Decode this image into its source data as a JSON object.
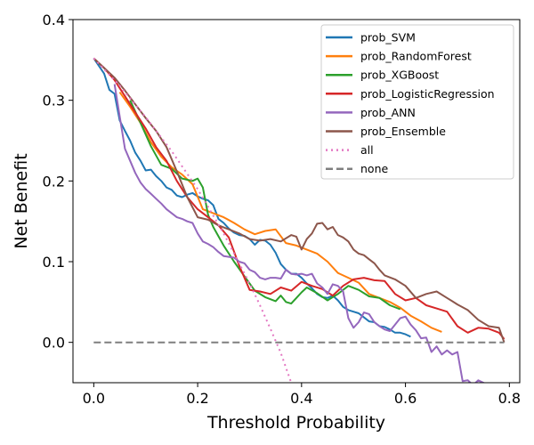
{
  "chart_data": {
    "type": "line",
    "title": "",
    "xlabel": "Threshold Probability",
    "ylabel": "Net Benefit",
    "xlim": [
      -0.04,
      0.82
    ],
    "ylim": [
      -0.05,
      0.4
    ],
    "xticks": [
      0.0,
      0.2,
      0.4,
      0.6,
      0.8
    ],
    "xtick_labels": [
      "0.0",
      "0.2",
      "0.4",
      "0.6",
      "0.8"
    ],
    "yticks": [
      0.0,
      0.1,
      0.2,
      0.3,
      0.4
    ],
    "ytick_labels": [
      "0.0",
      "0.1",
      "0.2",
      "0.3",
      "0.4"
    ],
    "grid": false,
    "legend_position": "top-right",
    "series": [
      {
        "name": "prob_SVM",
        "color": "#1f77b4",
        "style": "solid",
        "x": [
          0.0,
          0.02,
          0.03,
          0.04,
          0.05,
          0.06,
          0.07,
          0.08,
          0.09,
          0.1,
          0.11,
          0.12,
          0.13,
          0.14,
          0.15,
          0.16,
          0.17,
          0.18,
          0.19,
          0.2,
          0.21,
          0.22,
          0.23,
          0.24,
          0.25,
          0.26,
          0.27,
          0.28,
          0.29,
          0.3,
          0.31,
          0.32,
          0.33,
          0.34,
          0.35,
          0.36,
          0.37,
          0.38,
          0.39,
          0.4,
          0.41,
          0.42,
          0.43,
          0.44,
          0.45,
          0.46,
          0.47,
          0.48,
          0.49,
          0.5,
          0.51,
          0.52,
          0.53,
          0.54,
          0.55,
          0.56,
          0.57,
          0.58,
          0.59,
          0.6,
          0.61
        ],
        "y": [
          0.352,
          0.333,
          0.313,
          0.308,
          0.275,
          0.262,
          0.25,
          0.235,
          0.225,
          0.213,
          0.214,
          0.206,
          0.2,
          0.192,
          0.189,
          0.182,
          0.18,
          0.183,
          0.185,
          0.181,
          0.178,
          0.176,
          0.17,
          0.153,
          0.148,
          0.141,
          0.136,
          0.133,
          0.132,
          0.128,
          0.121,
          0.127,
          0.126,
          0.121,
          0.111,
          0.097,
          0.09,
          0.085,
          0.085,
          0.08,
          0.073,
          0.067,
          0.06,
          0.056,
          0.055,
          0.058,
          0.052,
          0.044,
          0.04,
          0.038,
          0.036,
          0.031,
          0.026,
          0.025,
          0.02,
          0.019,
          0.016,
          0.012,
          0.012,
          0.01,
          0.007
        ]
      },
      {
        "name": "prob_RandomForest",
        "color": "#ff7f0e",
        "style": "solid",
        "x": [
          0.05,
          0.07,
          0.09,
          0.11,
          0.13,
          0.15,
          0.17,
          0.19,
          0.21,
          0.23,
          0.25,
          0.27,
          0.29,
          0.31,
          0.33,
          0.35,
          0.37,
          0.39,
          0.41,
          0.43,
          0.45,
          0.47,
          0.49,
          0.51,
          0.53,
          0.55,
          0.57,
          0.59,
          0.61,
          0.63,
          0.65,
          0.67
        ],
        "y": [
          0.31,
          0.292,
          0.272,
          0.248,
          0.23,
          0.217,
          0.208,
          0.196,
          0.165,
          0.16,
          0.155,
          0.148,
          0.14,
          0.134,
          0.138,
          0.14,
          0.123,
          0.12,
          0.115,
          0.11,
          0.1,
          0.086,
          0.08,
          0.074,
          0.06,
          0.055,
          0.05,
          0.043,
          0.033,
          0.026,
          0.018,
          0.013
        ]
      },
      {
        "name": "prob_XGBoost",
        "color": "#2ca02c",
        "style": "solid",
        "x": [
          0.07,
          0.09,
          0.11,
          0.13,
          0.15,
          0.17,
          0.19,
          0.2,
          0.21,
          0.22,
          0.23,
          0.25,
          0.27,
          0.29,
          0.31,
          0.33,
          0.35,
          0.36,
          0.37,
          0.38,
          0.39,
          0.4,
          0.41,
          0.43,
          0.45,
          0.47,
          0.49,
          0.51,
          0.53,
          0.55,
          0.57,
          0.59
        ],
        "y": [
          0.3,
          0.272,
          0.243,
          0.22,
          0.215,
          0.203,
          0.2,
          0.203,
          0.192,
          0.158,
          0.143,
          0.12,
          0.1,
          0.082,
          0.064,
          0.056,
          0.051,
          0.058,
          0.05,
          0.048,
          0.055,
          0.062,
          0.068,
          0.061,
          0.052,
          0.06,
          0.07,
          0.065,
          0.057,
          0.055,
          0.046,
          0.041
        ]
      },
      {
        "name": "prob_LogisticRegression",
        "color": "#d62728",
        "style": "solid",
        "x": [
          0.0,
          0.02,
          0.04,
          0.06,
          0.08,
          0.1,
          0.12,
          0.14,
          0.16,
          0.18,
          0.2,
          0.22,
          0.24,
          0.26,
          0.28,
          0.3,
          0.32,
          0.34,
          0.36,
          0.38,
          0.4,
          0.42,
          0.44,
          0.46,
          0.48,
          0.5,
          0.52,
          0.54,
          0.56,
          0.58,
          0.6,
          0.62,
          0.64,
          0.66,
          0.68,
          0.7,
          0.72,
          0.74,
          0.76,
          0.78,
          0.79
        ],
        "y": [
          0.352,
          0.34,
          0.325,
          0.305,
          0.285,
          0.265,
          0.242,
          0.225,
          0.2,
          0.18,
          0.165,
          0.155,
          0.145,
          0.13,
          0.095,
          0.065,
          0.063,
          0.06,
          0.068,
          0.064,
          0.075,
          0.07,
          0.066,
          0.058,
          0.07,
          0.078,
          0.08,
          0.077,
          0.076,
          0.06,
          0.052,
          0.055,
          0.046,
          0.042,
          0.038,
          0.02,
          0.012,
          0.018,
          0.017,
          0.012,
          0.004
        ]
      },
      {
        "name": "prob_ANN",
        "color": "#9467bd",
        "style": "solid",
        "x": [
          0.04,
          0.05,
          0.06,
          0.07,
          0.08,
          0.09,
          0.1,
          0.11,
          0.12,
          0.13,
          0.14,
          0.15,
          0.16,
          0.17,
          0.18,
          0.19,
          0.2,
          0.21,
          0.22,
          0.23,
          0.24,
          0.25,
          0.26,
          0.27,
          0.28,
          0.29,
          0.3,
          0.31,
          0.32,
          0.33,
          0.34,
          0.35,
          0.36,
          0.37,
          0.38,
          0.39,
          0.4,
          0.41,
          0.42,
          0.43,
          0.44,
          0.45,
          0.46,
          0.47,
          0.48,
          0.49,
          0.5,
          0.51,
          0.52,
          0.53,
          0.54,
          0.55,
          0.56,
          0.57,
          0.58,
          0.59,
          0.6,
          0.61,
          0.62,
          0.63,
          0.64,
          0.65,
          0.66,
          0.67,
          0.68,
          0.69,
          0.7,
          0.71,
          0.72,
          0.73,
          0.74,
          0.75,
          0.76,
          0.77
        ],
        "y": [
          0.32,
          0.28,
          0.24,
          0.225,
          0.21,
          0.198,
          0.19,
          0.184,
          0.178,
          0.172,
          0.165,
          0.16,
          0.155,
          0.153,
          0.15,
          0.148,
          0.135,
          0.125,
          0.122,
          0.118,
          0.112,
          0.107,
          0.106,
          0.105,
          0.1,
          0.098,
          0.09,
          0.087,
          0.08,
          0.078,
          0.08,
          0.08,
          0.079,
          0.09,
          0.085,
          0.084,
          0.085,
          0.083,
          0.085,
          0.073,
          0.068,
          0.06,
          0.072,
          0.07,
          0.063,
          0.03,
          0.018,
          0.025,
          0.037,
          0.035,
          0.025,
          0.02,
          0.016,
          0.014,
          0.022,
          0.03,
          0.032,
          0.022,
          0.015,
          0.005,
          0.006,
          -0.012,
          -0.005,
          -0.015,
          -0.01,
          -0.015,
          -0.012,
          -0.048,
          -0.047,
          -0.053,
          -0.047,
          -0.05,
          -0.053,
          -0.06
        ]
      },
      {
        "name": "prob_Ensemble",
        "color": "#8c564b",
        "style": "solid",
        "x": [
          0.0,
          0.02,
          0.04,
          0.06,
          0.08,
          0.1,
          0.12,
          0.14,
          0.16,
          0.18,
          0.2,
          0.22,
          0.24,
          0.26,
          0.28,
          0.3,
          0.32,
          0.34,
          0.36,
          0.38,
          0.39,
          0.4,
          0.41,
          0.42,
          0.43,
          0.44,
          0.45,
          0.46,
          0.47,
          0.48,
          0.49,
          0.5,
          0.51,
          0.52,
          0.53,
          0.54,
          0.55,
          0.56,
          0.58,
          0.6,
          0.62,
          0.64,
          0.66,
          0.68,
          0.7,
          0.72,
          0.74,
          0.76,
          0.78,
          0.79
        ],
        "y": [
          0.352,
          0.34,
          0.328,
          0.312,
          0.295,
          0.278,
          0.262,
          0.242,
          0.212,
          0.18,
          0.155,
          0.152,
          0.145,
          0.14,
          0.135,
          0.128,
          0.126,
          0.128,
          0.125,
          0.133,
          0.131,
          0.115,
          0.128,
          0.135,
          0.147,
          0.148,
          0.14,
          0.143,
          0.133,
          0.13,
          0.125,
          0.115,
          0.11,
          0.108,
          0.103,
          0.098,
          0.09,
          0.083,
          0.078,
          0.07,
          0.055,
          0.06,
          0.063,
          0.055,
          0.047,
          0.04,
          0.028,
          0.02,
          0.018,
          0.0
        ]
      },
      {
        "name": "all",
        "color": "#e377c2",
        "style": "dotted",
        "x": [
          0.0,
          0.05,
          0.1,
          0.15,
          0.2,
          0.25,
          0.3,
          0.32,
          0.34,
          0.36,
          0.38
        ],
        "y": [
          0.352,
          0.318,
          0.279,
          0.237,
          0.19,
          0.135,
          0.073,
          0.046,
          0.017,
          -0.013,
          -0.05
        ]
      },
      {
        "name": "none",
        "color": "#7f7f7f",
        "style": "dashed",
        "x": [
          0.0,
          0.79
        ],
        "y": [
          0.0,
          0.0
        ]
      }
    ]
  }
}
